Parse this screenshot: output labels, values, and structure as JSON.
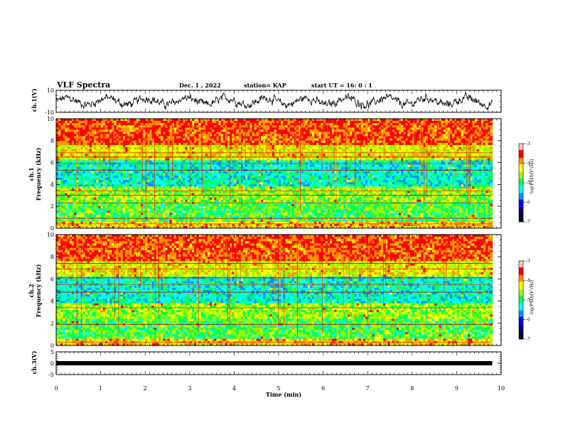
{
  "header": {
    "title": "VLF Spectra",
    "date": "Dec. 1 , 2022",
    "station": "station= KAP",
    "start_time": "start  UT =  16: 0  : 1"
  },
  "colors": {
    "background": "#ffffff",
    "axes": "#000000",
    "colormap": [
      "#00007a",
      "#0000ff",
      "#0096ff",
      "#00ffff",
      "#00ff64",
      "#96ff00",
      "#ffff00",
      "#ff9600",
      "#ff0000",
      "#ffc8c8"
    ]
  },
  "chart_data": [
    {
      "id": "ch1-waveform",
      "type": "line",
      "ylabel": "ch.1(V)",
      "ylim": [
        -10,
        10
      ],
      "yticks": [
        "10",
        "-10"
      ],
      "xlim": [
        0,
        10
      ],
      "description_series": "continuous noisy waveform over 0-9.8 min",
      "x_end": 9.8
    },
    {
      "id": "ch1-spectrogram",
      "type": "heatmap",
      "ylabel": "ch.1\nFrequency (kHz)",
      "ylabel_line1": "ch.1",
      "ylabel_line2": "Frequency  (kHz)",
      "ylim": [
        0,
        10
      ],
      "yticks": [
        "0",
        "2",
        "4",
        "6",
        "8",
        "10"
      ],
      "xlim": [
        0,
        10
      ],
      "x_end": 9.8,
      "colorbar": {
        "label": "log(PSD)(V²/Hz)",
        "range": [
          -7,
          -3
        ],
        "ticks": [
          "-3",
          "-4",
          "-5",
          "-6",
          "-7"
        ]
      },
      "horizontal_lines_khz": [
        0.4,
        0.9,
        2.3,
        3.0,
        3.4,
        5.3,
        5.9,
        6.5,
        6.9
      ]
    },
    {
      "id": "ch2-spectrogram",
      "type": "heatmap",
      "ylabel_line1": "ch.2",
      "ylabel_line2": "Frequency  (kHz)",
      "ylim": [
        0,
        10
      ],
      "yticks": [
        "0",
        "2",
        "4",
        "6",
        "8",
        "10"
      ],
      "xlim": [
        0,
        10
      ],
      "x_end": 9.8,
      "colorbar": {
        "label": "log(PSD)(V²/Hz)",
        "range": [
          -7,
          -3
        ],
        "ticks": [
          "-3",
          "-4",
          "-5",
          "-6",
          "-7"
        ]
      },
      "horizontal_lines_khz": [
        0.3,
        1.9,
        3.4,
        4.8,
        5.5,
        6.1,
        6.9,
        7.4
      ]
    },
    {
      "id": "ch3-waveform",
      "type": "line",
      "ylabel": "ch.3(V)",
      "ylim": [
        -5,
        5
      ],
      "yticks": [
        "5",
        "0",
        "-5"
      ],
      "xlim": [
        0,
        10
      ],
      "x_end": 9.8,
      "constant_value": 0
    }
  ],
  "xaxis": {
    "label": "Time  (min)",
    "ticks": [
      "0",
      "1",
      "2",
      "3",
      "4",
      "5",
      "6",
      "7",
      "8",
      "9",
      "10"
    ]
  }
}
